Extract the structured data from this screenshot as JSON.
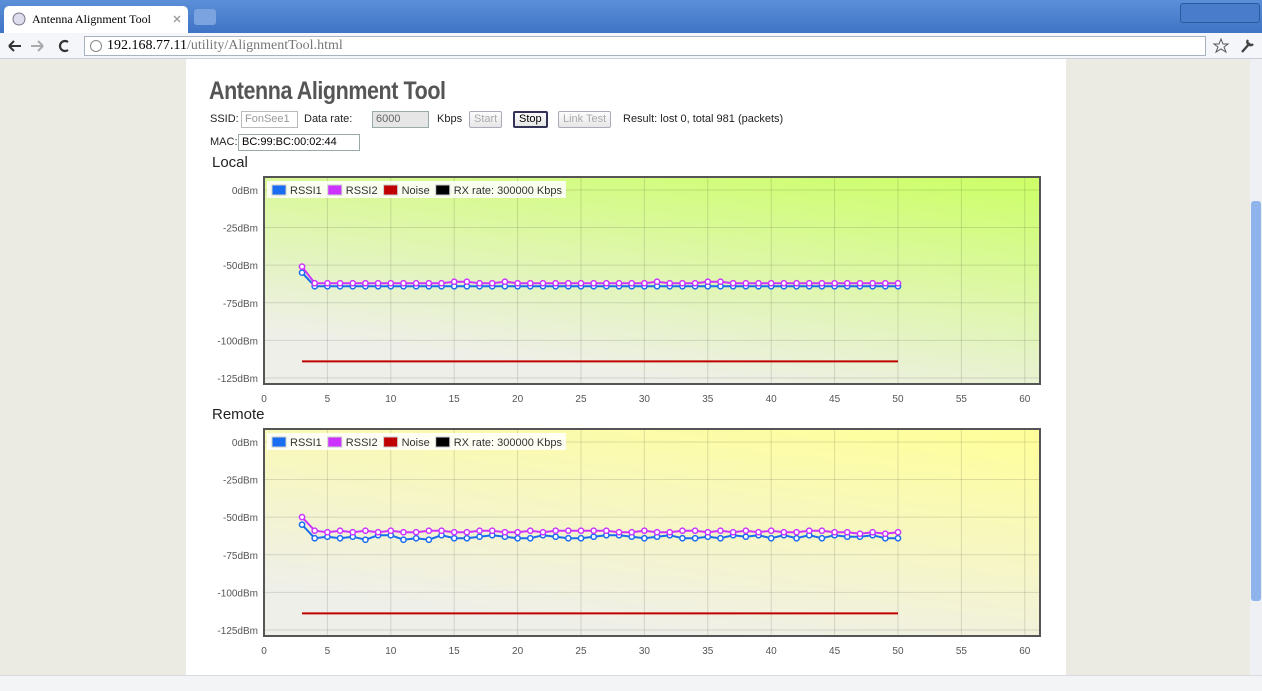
{
  "browser": {
    "tab_title": "Antenna Alignment Tool",
    "url_host": "192.168.77.11",
    "url_path": "/utility/AlignmentTool.html"
  },
  "header": {
    "title": "Antenna Alignment Tool"
  },
  "controls": {
    "ssid_label": "SSID:",
    "ssid_value": "FonSee1",
    "rate_label": "Data rate:",
    "rate_value": "6000",
    "rate_unit": "Kbps",
    "start": "Start",
    "stop": "Stop",
    "link_test": "Link Test",
    "result": "Result: lost 0, total 981 (packets)",
    "mac_label": "MAC:",
    "mac_value": "BC:99:BC:00:02:44"
  },
  "chart_data": [
    {
      "type": "line",
      "title": "Local",
      "background_colors": [
        "#ccff66",
        "#efefe9"
      ],
      "x": [
        3,
        4,
        5,
        6,
        7,
        8,
        9,
        10,
        11,
        12,
        13,
        14,
        15,
        16,
        17,
        18,
        19,
        20,
        21,
        22,
        23,
        24,
        25,
        26,
        27,
        28,
        29,
        30,
        31,
        32,
        33,
        34,
        35,
        36,
        37,
        38,
        39,
        40,
        41,
        42,
        43,
        44,
        45,
        46,
        47,
        48,
        49,
        50
      ],
      "series": [
        {
          "name": "RSSI1",
          "color": "#1a6cf0",
          "points": true,
          "values": [
            -55,
            -64,
            -64,
            -64,
            -64,
            -64,
            -64,
            -64,
            -64,
            -64,
            -64,
            -64,
            -64,
            -64,
            -64,
            -64,
            -64,
            -64,
            -64,
            -64,
            -64,
            -64,
            -64,
            -64,
            -64,
            -64,
            -64,
            -64,
            -64,
            -64,
            -64,
            -64,
            -64,
            -64,
            -64,
            -64,
            -64,
            -64,
            -64,
            -64,
            -64,
            -64,
            -64,
            -64,
            -64,
            -64,
            -64,
            -64
          ]
        },
        {
          "name": "RSSI2",
          "color": "#cc33ff",
          "points": true,
          "values": [
            -51,
            -62,
            -62,
            -62,
            -62,
            -62,
            -62,
            -62,
            -62,
            -62,
            -62,
            -62,
            -61,
            -61,
            -62,
            -62,
            -61,
            -62,
            -62,
            -62,
            -62,
            -62,
            -62,
            -62,
            -62,
            -62,
            -62,
            -62,
            -61,
            -62,
            -62,
            -62,
            -61,
            -61,
            -62,
            -62,
            -62,
            -62,
            -62,
            -62,
            -62,
            -62,
            -62,
            -62,
            -62,
            -62,
            -62,
            -62
          ]
        },
        {
          "name": "Noise",
          "color": "#c00000",
          "points": false,
          "values": [
            -114,
            -114,
            -114,
            -114,
            -114,
            -114,
            -114,
            -114,
            -114,
            -114,
            -114,
            -114,
            -114,
            -114,
            -114,
            -114,
            -114,
            -114,
            -114,
            -114,
            -114,
            -114,
            -114,
            -114,
            -114,
            -114,
            -114,
            -114,
            -114,
            -114,
            -114,
            -114,
            -114,
            -114,
            -114,
            -114,
            -114,
            -114,
            -114,
            -114,
            -114,
            -114,
            -114,
            -114,
            -114,
            -114,
            -114,
            -114
          ]
        },
        {
          "name": "RX rate: 300000 Kbps",
          "color": "#000000"
        }
      ],
      "xlim": [
        0,
        61.2
      ],
      "xticks": [
        0,
        5,
        10,
        15,
        20,
        25,
        30,
        35,
        40,
        45,
        50,
        55,
        60
      ],
      "ylim": [
        -129,
        8.6
      ],
      "yticks": [
        {
          "value": 0,
          "label": "0dBm"
        },
        {
          "value": -25,
          "label": "-25dBm"
        },
        {
          "value": -50,
          "label": "-50dBm"
        },
        {
          "value": -75,
          "label": "-75dBm"
        },
        {
          "value": -100,
          "label": "-100dBm"
        },
        {
          "value": -125,
          "label": "-125dBm"
        }
      ],
      "grid": true
    },
    {
      "type": "line",
      "title": "Remote",
      "background_colors": [
        "#ffff99",
        "#efefe9"
      ],
      "x": [
        3,
        4,
        5,
        6,
        7,
        8,
        9,
        10,
        11,
        12,
        13,
        14,
        15,
        16,
        17,
        18,
        19,
        20,
        21,
        22,
        23,
        24,
        25,
        26,
        27,
        28,
        29,
        30,
        31,
        32,
        33,
        34,
        35,
        36,
        37,
        38,
        39,
        40,
        41,
        42,
        43,
        44,
        45,
        46,
        47,
        48,
        49,
        50
      ],
      "series": [
        {
          "name": "RSSI1",
          "color": "#1a6cf0",
          "points": true,
          "values": [
            -55,
            -64,
            -63,
            -64,
            -63,
            -65,
            -62,
            -62,
            -65,
            -64,
            -65,
            -62,
            -64,
            -64,
            -63,
            -62,
            -63,
            -64,
            -64,
            -62,
            -63,
            -64,
            -64,
            -63,
            -62,
            -62,
            -63,
            -64,
            -63,
            -62,
            -64,
            -64,
            -63,
            -64,
            -62,
            -63,
            -62,
            -64,
            -62,
            -64,
            -62,
            -64,
            -62,
            -63,
            -63,
            -62,
            -64,
            -64
          ]
        },
        {
          "name": "RSSI2",
          "color": "#cc33ff",
          "points": true,
          "values": [
            -50,
            -59,
            -60,
            -59,
            -60,
            -59,
            -60,
            -59,
            -60,
            -60,
            -59,
            -59,
            -60,
            -60,
            -59,
            -59,
            -60,
            -60,
            -59,
            -60,
            -59,
            -59,
            -59,
            -59,
            -59,
            -60,
            -60,
            -59,
            -60,
            -60,
            -59,
            -59,
            -60,
            -59,
            -60,
            -59,
            -60,
            -59,
            -60,
            -60,
            -59,
            -59,
            -60,
            -60,
            -61,
            -60,
            -61,
            -60
          ]
        },
        {
          "name": "Noise",
          "color": "#c00000",
          "points": false,
          "values": [
            -114,
            -114,
            -114,
            -114,
            -114,
            -114,
            -114,
            -114,
            -114,
            -114,
            -114,
            -114,
            -114,
            -114,
            -114,
            -114,
            -114,
            -114,
            -114,
            -114,
            -114,
            -114,
            -114,
            -114,
            -114,
            -114,
            -114,
            -114,
            -114,
            -114,
            -114,
            -114,
            -114,
            -114,
            -114,
            -114,
            -114,
            -114,
            -114,
            -114,
            -114,
            -114,
            -114,
            -114,
            -114,
            -114,
            -114,
            -114
          ]
        },
        {
          "name": "RX rate: 300000 Kbps",
          "color": "#000000"
        }
      ],
      "xlim": [
        0,
        61.2
      ],
      "xticks": [
        0,
        5,
        10,
        15,
        20,
        25,
        30,
        35,
        40,
        45,
        50,
        55,
        60
      ],
      "ylim": [
        -129,
        8.6
      ],
      "yticks": [
        {
          "value": 0,
          "label": "0dBm"
        },
        {
          "value": -25,
          "label": "-25dBm"
        },
        {
          "value": -50,
          "label": "-50dBm"
        },
        {
          "value": -75,
          "label": "-75dBm"
        },
        {
          "value": -100,
          "label": "-100dBm"
        },
        {
          "value": -125,
          "label": "-125dBm"
        }
      ],
      "grid": true
    }
  ]
}
